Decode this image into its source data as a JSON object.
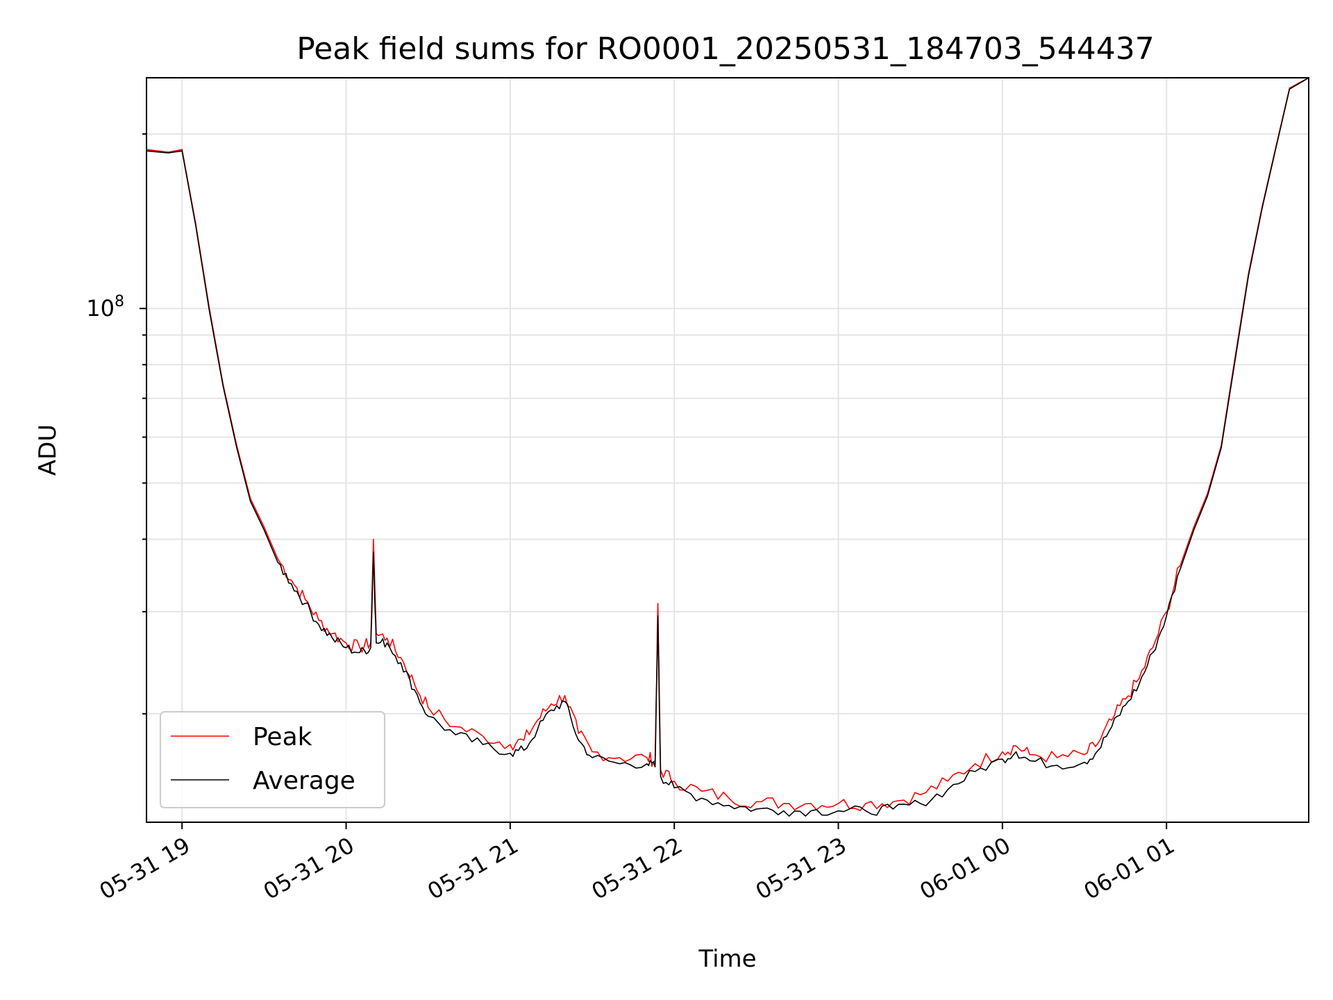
{
  "chart_data": {
    "type": "line",
    "title": "Peak field sums for RO0001_20250531_184703_544437",
    "xlabel": "Time",
    "ylabel": "ADU",
    "yscale": "log",
    "grid": true,
    "legend_position": "lower-left",
    "x_ticks": [
      "05-31 19",
      "05-31 20",
      "05-31 21",
      "05-31 22",
      "05-31 23",
      "06-01 00",
      "06-01 01"
    ],
    "y_major_tick": {
      "value": 100000000,
      "base": "10",
      "exp": "8"
    },
    "xlim": [
      "2025-05-31 18:47",
      "2025-06-01 01:52"
    ],
    "ylim": [
      13000000,
      250000000
    ],
    "series": [
      {
        "name": "Peak",
        "color": "#ff0000",
        "x": [
          "2025-05-31 18:47",
          "2025-05-31 18:55",
          "2025-05-31 19:00",
          "2025-05-31 19:05",
          "2025-05-31 19:10",
          "2025-05-31 19:15",
          "2025-05-31 19:20",
          "2025-05-31 19:25",
          "2025-05-31 19:30",
          "2025-05-31 19:35",
          "2025-05-31 19:40",
          "2025-05-31 19:45",
          "2025-05-31 19:50",
          "2025-05-31 19:55",
          "2025-05-31 20:00",
          "2025-05-31 20:05",
          "2025-05-31 20:09",
          "2025-05-31 20:10",
          "2025-05-31 20:11",
          "2025-05-31 20:15",
          "2025-05-31 20:20",
          "2025-05-31 20:25",
          "2025-05-31 20:30",
          "2025-05-31 20:40",
          "2025-05-31 20:50",
          "2025-05-31 21:00",
          "2025-05-31 21:05",
          "2025-05-31 21:10",
          "2025-05-31 21:15",
          "2025-05-31 21:20",
          "2025-05-31 21:25",
          "2025-05-31 21:30",
          "2025-05-31 21:40",
          "2025-05-31 21:50",
          "2025-05-31 21:53",
          "2025-05-31 21:54",
          "2025-05-31 21:55",
          "2025-05-31 22:00",
          "2025-05-31 22:10",
          "2025-05-31 22:20",
          "2025-05-31 22:30",
          "2025-05-31 22:40",
          "2025-05-31 22:50",
          "2025-05-31 23:00",
          "2025-05-31 23:10",
          "2025-05-31 23:20",
          "2025-05-31 23:30",
          "2025-05-31 23:40",
          "2025-05-31 23:50",
          "2025-06-01 00:00",
          "2025-06-01 00:05",
          "2025-06-01 00:10",
          "2025-06-01 00:20",
          "2025-06-01 00:30",
          "2025-06-01 00:35",
          "2025-06-01 00:40",
          "2025-06-01 00:45",
          "2025-06-01 00:50",
          "2025-06-01 00:55",
          "2025-06-01 01:00",
          "2025-06-01 01:05",
          "2025-06-01 01:10",
          "2025-06-01 01:15",
          "2025-06-01 01:20",
          "2025-06-01 01:25",
          "2025-06-01 01:30",
          "2025-06-01 01:35",
          "2025-06-01 01:40",
          "2025-06-01 01:45",
          "2025-06-01 01:52"
        ],
        "values": [
          188000000,
          186000000,
          188000000,
          140000000,
          100000000,
          74000000,
          58000000,
          47000000,
          42000000,
          37000000,
          34000000,
          31500000,
          29000000,
          27500000,
          26500000,
          26000000,
          26500000,
          40000000,
          27500000,
          27000000,
          25000000,
          22500000,
          20500000,
          19000000,
          18300000,
          17700000,
          18000000,
          19500000,
          20800000,
          21500000,
          18500000,
          17200000,
          16800000,
          16800000,
          16600000,
          31000000,
          16000000,
          15300000,
          14700000,
          14300000,
          14100000,
          14000000,
          14000000,
          14000000,
          14000000,
          14100000,
          14500000,
          15300000,
          16400000,
          17200000,
          17600000,
          17000000,
          16800000,
          17000000,
          17800000,
          19500000,
          21200000,
          23000000,
          26000000,
          30000000,
          36000000,
          42000000,
          48000000,
          58000000,
          82000000,
          115000000,
          150000000,
          190000000,
          240000000,
          250000000
        ]
      },
      {
        "name": "Average",
        "color": "#000000",
        "x": [
          "2025-05-31 18:47",
          "2025-05-31 18:55",
          "2025-05-31 19:00",
          "2025-05-31 19:05",
          "2025-05-31 19:10",
          "2025-05-31 19:15",
          "2025-05-31 19:20",
          "2025-05-31 19:25",
          "2025-05-31 19:30",
          "2025-05-31 19:35",
          "2025-05-31 19:40",
          "2025-05-31 19:45",
          "2025-05-31 19:50",
          "2025-05-31 19:55",
          "2025-05-31 20:00",
          "2025-05-31 20:05",
          "2025-05-31 20:09",
          "2025-05-31 20:10",
          "2025-05-31 20:11",
          "2025-05-31 20:15",
          "2025-05-31 20:20",
          "2025-05-31 20:25",
          "2025-05-31 20:30",
          "2025-05-31 20:40",
          "2025-05-31 20:50",
          "2025-05-31 21:00",
          "2025-05-31 21:05",
          "2025-05-31 21:10",
          "2025-05-31 21:15",
          "2025-05-31 21:20",
          "2025-05-31 21:25",
          "2025-05-31 21:30",
          "2025-05-31 21:40",
          "2025-05-31 21:50",
          "2025-05-31 21:53",
          "2025-05-31 21:54",
          "2025-05-31 21:55",
          "2025-05-31 22:00",
          "2025-05-31 22:10",
          "2025-05-31 22:20",
          "2025-05-31 22:30",
          "2025-05-31 22:40",
          "2025-05-31 22:50",
          "2025-05-31 23:00",
          "2025-05-31 23:10",
          "2025-05-31 23:20",
          "2025-05-31 23:30",
          "2025-05-31 23:40",
          "2025-05-31 23:50",
          "2025-06-01 00:00",
          "2025-06-01 00:05",
          "2025-06-01 00:10",
          "2025-06-01 00:20",
          "2025-06-01 00:30",
          "2025-06-01 00:35",
          "2025-06-01 00:40",
          "2025-06-01 00:45",
          "2025-06-01 00:50",
          "2025-06-01 00:55",
          "2025-06-01 01:00",
          "2025-06-01 01:05",
          "2025-06-01 01:10",
          "2025-06-01 01:15",
          "2025-06-01 01:20",
          "2025-06-01 01:25",
          "2025-06-01 01:30",
          "2025-06-01 01:35",
          "2025-06-01 01:40",
          "2025-06-01 01:45",
          "2025-06-01 01:52"
        ],
        "values": [
          187000000,
          185500000,
          187000000,
          139000000,
          99000000,
          73500000,
          57500000,
          46500000,
          41500000,
          36500000,
          33500000,
          31000000,
          28500000,
          27000000,
          26000000,
          25500000,
          26000000,
          38000000,
          26500000,
          26500000,
          24500000,
          22000000,
          19800000,
          18400000,
          17700000,
          17100000,
          17300000,
          18800000,
          20300000,
          21000000,
          18000000,
          16800000,
          16400000,
          16400000,
          16200000,
          29500000,
          15600000,
          14900000,
          14300000,
          13900000,
          13700000,
          13600000,
          13600000,
          13600000,
          13600000,
          13700000,
          14000000,
          14800000,
          15900000,
          16700000,
          17200000,
          16600000,
          16300000,
          16500000,
          17300000,
          19000000,
          20700000,
          22500000,
          25500000,
          29500000,
          35500000,
          41500000,
          47500000,
          57500000,
          81000000,
          114000000,
          149000000,
          189000000,
          239000000,
          250000000
        ]
      }
    ]
  },
  "legend": {
    "peak_label": "Peak",
    "average_label": "Average"
  }
}
